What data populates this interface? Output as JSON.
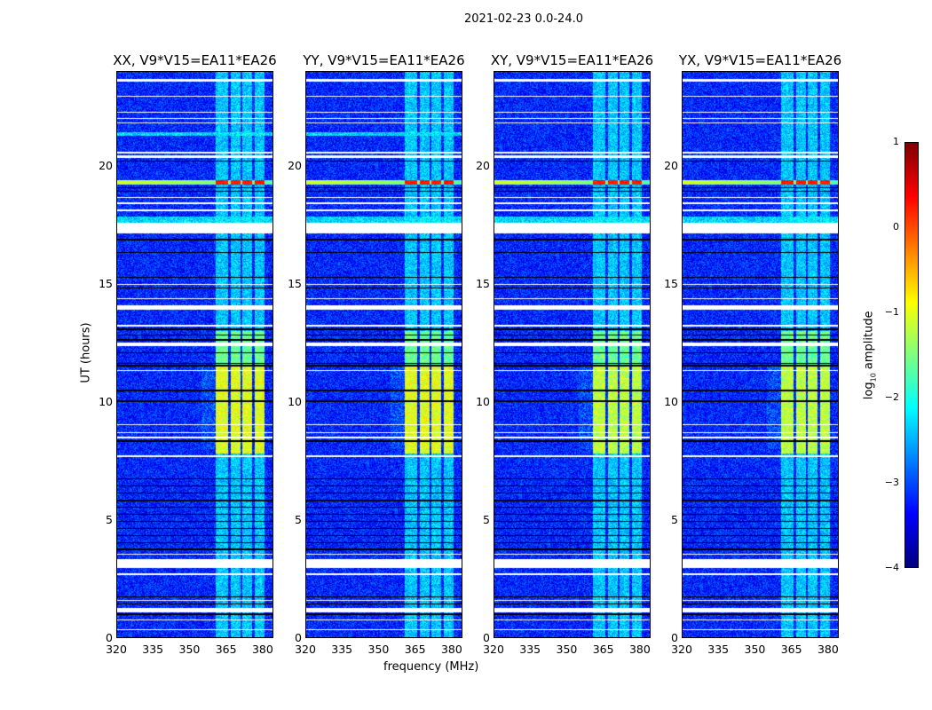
{
  "suptitle": "2021-02-23 0.0-24.0",
  "chart_data": {
    "type": "heatmap",
    "title": "2021-02-23 0.0-24.0",
    "panels": [
      {
        "title": "XX, V9*V15=EA11*EA26"
      },
      {
        "title": "YY, V9*V15=EA11*EA26"
      },
      {
        "title": "XY, V9*V15=EA11*EA26"
      },
      {
        "title": "YX, V9*V15=EA11*EA26"
      }
    ],
    "xlabel": "frequency (MHz)",
    "ylabel": "UT (hours)",
    "xlim": [
      320,
      384.4
    ],
    "ylim": [
      0,
      24
    ],
    "xticks": [
      "320",
      "335",
      "350",
      "365",
      "380"
    ],
    "xtick_values": [
      320,
      335,
      350,
      365,
      380
    ],
    "yticks": [
      "0",
      "5",
      "10",
      "15",
      "20"
    ],
    "ytick_values": [
      0,
      5,
      10,
      15,
      20
    ],
    "colorbar": {
      "label": "log10 amplitude",
      "label_main": "log",
      "label_sub": "10",
      "label_rest": " amplitude",
      "range": [
        -4,
        1
      ],
      "ticks": [
        "1",
        "0",
        "−1",
        "−2",
        "−3",
        "−4"
      ],
      "tick_values": [
        1,
        0,
        -1,
        -2,
        -3,
        -4
      ],
      "colormap": "jet"
    },
    "background_log_amplitude": -3.2,
    "rfi_channels_mhz": [
      [
        361,
        366
      ],
      [
        367,
        371
      ],
      [
        372,
        376
      ],
      [
        377,
        381
      ]
    ],
    "rfi_activity": [
      {
        "ut": [
          0,
          7.8
        ],
        "level": -2.4
      },
      {
        "ut": [
          7.8,
          11.5
        ],
        "level": -1.0
      },
      {
        "ut": [
          11.5,
          13.0
        ],
        "level": -1.6
      },
      {
        "ut": [
          13.0,
          24
        ],
        "level": -2.4
      }
    ],
    "strong_rfi_row": {
      "ut": [
        19.2,
        19.4
      ],
      "level_low": -1.1,
      "level_rfi": 0.1
    },
    "flagged_white_ut": [
      [
        0.3,
        0.35
      ],
      [
        0.7,
        0.75
      ],
      [
        1.05,
        1.25
      ],
      [
        1.55,
        1.6
      ],
      [
        2.65,
        2.7
      ],
      [
        2.95,
        3.3
      ],
      [
        3.5,
        3.55
      ],
      [
        7.65,
        7.72
      ],
      [
        8.45,
        8.5
      ],
      [
        8.65,
        8.7
      ],
      [
        9.0,
        9.05
      ],
      [
        11.3,
        11.35
      ],
      [
        12.35,
        12.5
      ],
      [
        13.2,
        13.25
      ],
      [
        13.9,
        14.1
      ],
      [
        14.35,
        14.4
      ],
      [
        14.95,
        15.0
      ],
      [
        17.15,
        17.6
      ],
      [
        18.1,
        18.15
      ],
      [
        18.4,
        18.45
      ],
      [
        18.65,
        18.7
      ],
      [
        20.35,
        20.45
      ],
      [
        20.55,
        20.6
      ],
      [
        21.8,
        21.85
      ],
      [
        22.0,
        22.05
      ],
      [
        22.25,
        22.3
      ],
      [
        22.95,
        23.0
      ],
      [
        23.6,
        23.7
      ]
    ],
    "flagged_black_ut": [
      [
        0.95,
        1.0
      ],
      [
        1.4,
        1.45
      ],
      [
        1.7,
        1.75
      ],
      [
        3.7,
        3.75
      ],
      [
        4.0,
        4.05
      ],
      [
        4.3,
        4.35
      ],
      [
        4.6,
        4.65
      ],
      [
        4.9,
        4.95
      ],
      [
        5.2,
        5.25
      ],
      [
        5.5,
        5.55
      ],
      [
        5.75,
        5.85
      ],
      [
        6.1,
        6.15
      ],
      [
        6.4,
        6.45
      ],
      [
        6.7,
        6.75
      ],
      [
        8.3,
        8.35
      ],
      [
        10.0,
        10.05
      ],
      [
        10.45,
        10.5
      ],
      [
        11.5,
        11.55
      ],
      [
        11.6,
        11.65
      ],
      [
        12.05,
        12.1
      ],
      [
        12.6,
        12.65
      ],
      [
        12.8,
        12.85
      ],
      [
        13.05,
        13.1
      ],
      [
        14.8,
        14.85
      ],
      [
        15.25,
        15.3
      ],
      [
        16.3,
        16.35
      ],
      [
        16.85,
        16.9
      ],
      [
        18.9,
        18.95
      ],
      [
        19.05,
        19.1
      ],
      [
        20.2,
        20.25
      ]
    ]
  }
}
